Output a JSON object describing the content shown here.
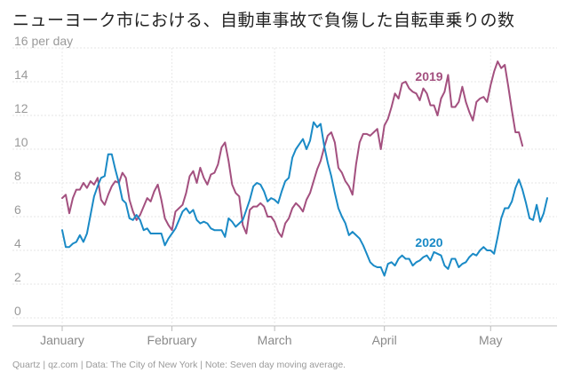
{
  "title": "ニューヨーク市における、自動車事故で負傷した自転車乗りの数",
  "footer": "Quartz | qz.com | Data: The City of New York | Note: Seven day moving average.",
  "chart_data": {
    "type": "line",
    "ylabel": "16 per day",
    "ylim": [
      0,
      16
    ],
    "yticks": [
      0,
      2,
      4,
      6,
      8,
      10,
      12,
      14
    ],
    "grid": true,
    "x_ticks": [
      {
        "day": 1,
        "label": "January"
      },
      {
        "day": 32,
        "label": "February"
      },
      {
        "day": 61,
        "label": "March"
      },
      {
        "day": 92,
        "label": "April"
      },
      {
        "day": 122,
        "label": "May"
      }
    ],
    "xlim": [
      1,
      140
    ],
    "series": [
      {
        "name": "2019",
        "color": "#a3507f",
        "start_day": 1,
        "values": [
          7.1,
          7.3,
          6.2,
          7.1,
          7.6,
          7.6,
          8.0,
          7.7,
          8.1,
          7.9,
          8.3,
          7.0,
          6.7,
          7.3,
          7.8,
          8.1,
          8.0,
          8.6,
          8.3,
          7.0,
          6.3,
          5.8,
          6.1,
          6.6,
          7.1,
          6.9,
          7.5,
          7.9,
          7.0,
          5.9,
          5.5,
          5.2,
          6.3,
          6.5,
          6.7,
          7.4,
          8.4,
          8.7,
          8.0,
          8.9,
          8.3,
          7.9,
          8.5,
          8.6,
          9.1,
          10.1,
          10.4,
          9.3,
          7.9,
          7.4,
          7.2,
          5.5,
          5.0,
          6.4,
          6.6,
          6.6,
          6.8,
          6.6,
          6.0,
          6.0,
          5.7,
          5.1,
          4.8,
          5.6,
          5.9,
          6.5,
          6.8,
          6.6,
          6.3,
          7.0,
          7.4,
          8.1,
          8.8,
          9.3,
          10.1,
          10.8,
          11.0,
          10.4,
          8.9,
          8.6,
          8.1,
          7.8,
          7.3,
          9.1,
          10.4,
          10.9,
          10.9,
          10.8,
          11.0,
          11.2,
          10.0,
          11.4,
          11.8,
          12.5,
          13.3,
          13.0,
          13.9,
          14.0,
          13.6,
          13.4,
          13.3,
          12.9,
          13.6,
          13.3,
          12.6,
          12.6,
          12.0,
          13.0,
          13.4,
          14.4,
          12.5,
          12.5,
          12.8,
          13.7,
          12.8,
          12.2,
          11.7,
          12.8,
          13.0,
          13.1,
          12.8,
          13.8,
          14.6,
          15.2,
          14.8,
          15.0,
          13.7,
          12.3,
          11.0,
          11.0,
          10.2
        ]
      },
      {
        "name": "2020",
        "color": "#1a8ac6",
        "start_day": 1,
        "values": [
          5.2,
          4.2,
          4.2,
          4.4,
          4.5,
          4.9,
          4.5,
          5.0,
          6.1,
          7.2,
          7.8,
          8.3,
          8.4,
          9.7,
          9.7,
          8.8,
          8.0,
          7.0,
          6.8,
          5.9,
          5.8,
          6.1,
          5.8,
          5.2,
          5.3,
          5.0,
          5.0,
          5.0,
          5.0,
          4.3,
          4.7,
          5.0,
          5.3,
          5.8,
          6.3,
          6.5,
          6.2,
          6.4,
          5.8,
          5.6,
          5.7,
          5.6,
          5.3,
          5.2,
          5.2,
          5.2,
          4.8,
          5.9,
          5.7,
          5.4,
          5.6,
          5.8,
          6.4,
          7.0,
          7.8,
          8.0,
          7.9,
          7.5,
          6.9,
          7.1,
          7.0,
          6.8,
          7.5,
          8.1,
          8.3,
          9.5,
          10.0,
          10.3,
          10.6,
          10.0,
          10.5,
          11.6,
          11.3,
          11.5,
          10.2,
          9.2,
          8.4,
          7.4,
          6.5,
          6.0,
          5.6,
          4.9,
          5.1,
          4.9,
          4.7,
          4.3,
          3.8,
          3.3,
          3.1,
          3.0,
          3.0,
          2.5,
          3.2,
          3.3,
          3.1,
          3.5,
          3.7,
          3.5,
          3.5,
          3.1,
          3.3,
          3.4,
          3.6,
          3.7,
          3.4,
          3.9,
          3.8,
          3.7,
          3.1,
          2.9,
          3.5,
          3.5,
          3.0,
          3.2,
          3.3,
          3.6,
          3.8,
          3.7,
          4.0,
          4.2,
          4.0,
          4.0,
          3.8,
          4.8,
          5.9,
          6.5,
          6.5,
          6.9,
          7.7,
          8.2,
          7.6,
          6.8,
          5.9,
          5.8,
          6.7,
          5.7,
          6.2,
          7.1
        ]
      }
    ]
  }
}
